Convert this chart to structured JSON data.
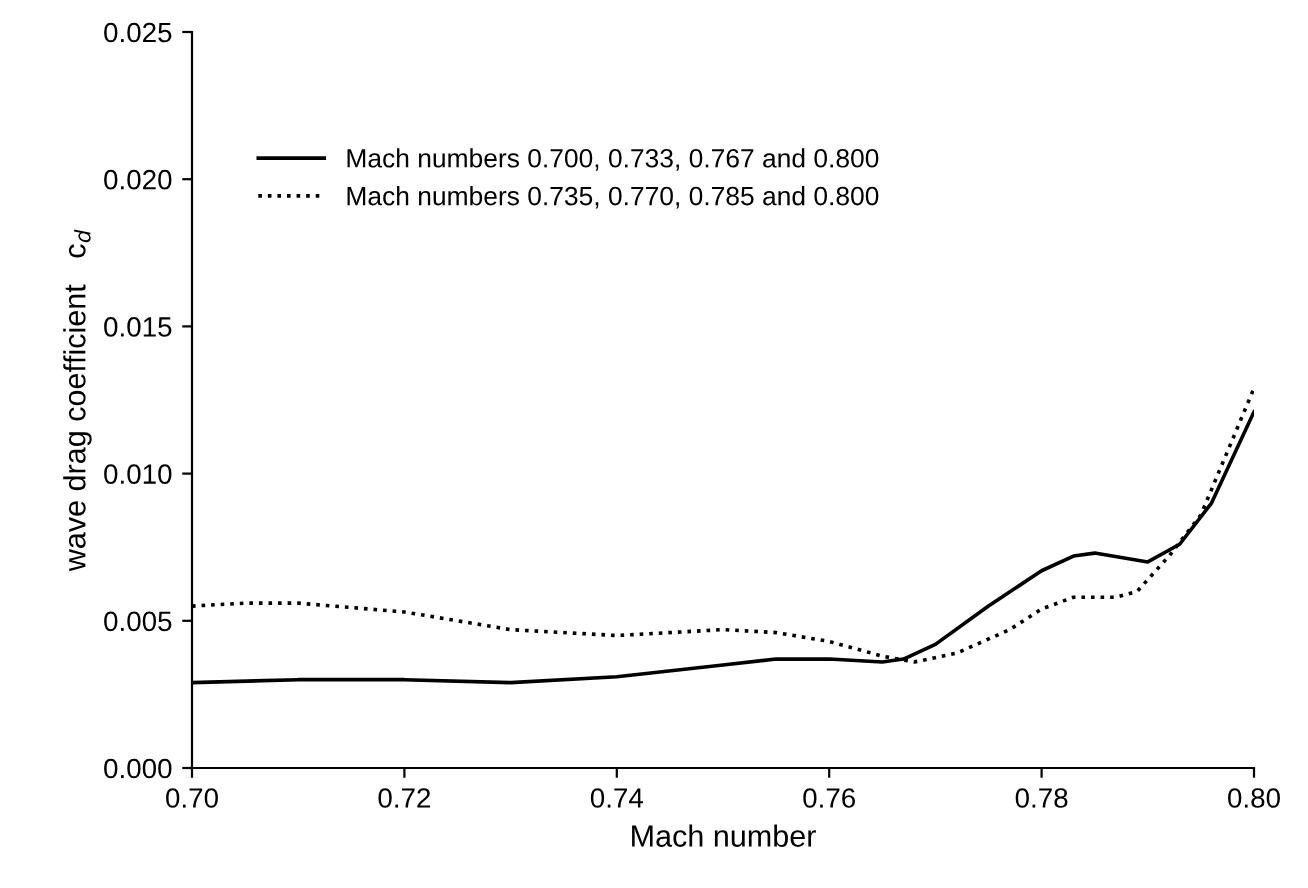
{
  "chart_data": {
    "type": "line",
    "xlabel": "Mach number",
    "ylabel": "wave drag coefficient   c$_{d}$",
    "xlim": [
      0.7,
      0.8
    ],
    "xticks": [
      {
        "value": 0.7,
        "label": "0.70"
      },
      0.72,
      0.74,
      0.76,
      0.78,
      {
        "value": 0.8,
        "label": "0.80"
      }
    ],
    "ylim": [
      0,
      0.025
    ],
    "yticks": [
      {
        "value": 0,
        "label": "0.000"
      },
      {
        "value": 0.005,
        "label": "0.005"
      },
      {
        "value": 0.01,
        "label": "0.010"
      },
      {
        "value": 0.015,
        "label": "0.015"
      },
      {
        "value": 0.02,
        "label": "0.020"
      },
      {
        "value": 0.025,
        "label": "0.025"
      }
    ],
    "grid": false,
    "legend": "top left",
    "marker": "none",
    "series": [
      {
        "name": "Mach numbers 0.700, 0.733, 0.767 and 0.800",
        "color": "#000000",
        "line_style": "solid",
        "x": [
          0.7,
          0.71,
          0.72,
          0.73,
          0.74,
          0.75,
          0.755,
          0.76,
          0.765,
          0.767,
          0.77,
          0.775,
          0.78,
          0.783,
          0.785,
          0.79,
          0.793,
          0.796,
          0.8
        ],
        "values": [
          0.0029,
          0.003,
          0.003,
          0.0029,
          0.0031,
          0.0035,
          0.0037,
          0.0037,
          0.0036,
          0.0037,
          0.0042,
          0.0055,
          0.0067,
          0.0072,
          0.0073,
          0.007,
          0.0076,
          0.009,
          0.0121
        ]
      },
      {
        "name": "Mach numbers 0.735, 0.770, 0.785 and 0.800",
        "color": "#000000",
        "line_style": "dotted",
        "x": [
          0.7,
          0.705,
          0.71,
          0.72,
          0.73,
          0.74,
          0.75,
          0.755,
          0.76,
          0.765,
          0.768,
          0.772,
          0.777,
          0.78,
          0.783,
          0.787,
          0.789,
          0.792,
          0.795,
          0.8
        ],
        "values": [
          0.0055,
          0.0056,
          0.0056,
          0.0053,
          0.0047,
          0.0045,
          0.0047,
          0.0046,
          0.0043,
          0.0038,
          0.0036,
          0.0039,
          0.0047,
          0.0054,
          0.0058,
          0.0058,
          0.006,
          0.0072,
          0.0086,
          0.0129
        ]
      }
    ]
  }
}
